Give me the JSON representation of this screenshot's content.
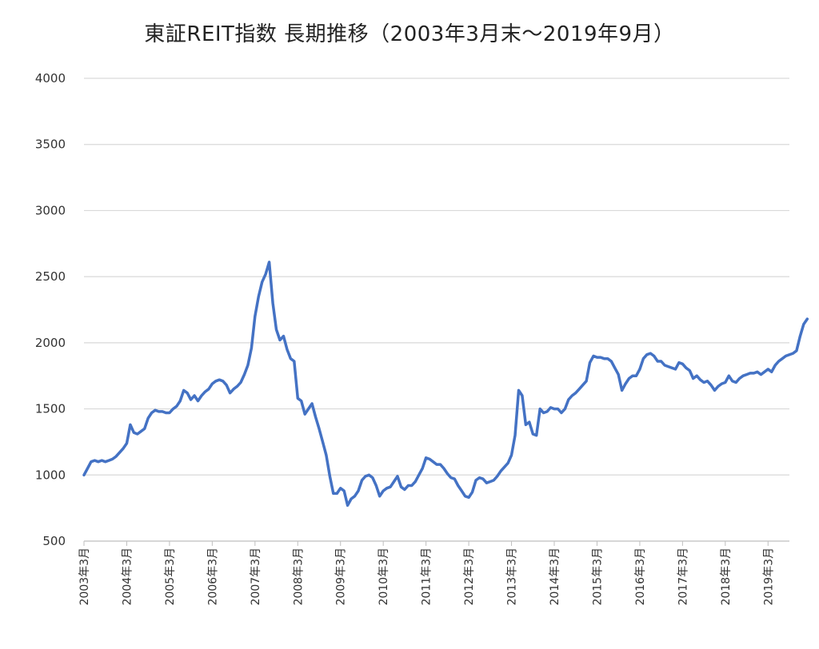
{
  "chart_data": {
    "type": "line",
    "title": "東証REIT指数 長期推移（2003年3月末～2019年9月）",
    "xlabel": "",
    "ylabel": "",
    "ylim": [
      500,
      4000
    ],
    "yticks": [
      "500",
      "1000",
      "1500",
      "2000",
      "2500",
      "3000",
      "3500",
      "4000"
    ],
    "xtick_labels": [
      "2003年3月",
      "2004年3月",
      "2005年3月",
      "2006年3月",
      "2007年3月",
      "2008年3月",
      "2009年3月",
      "2010年3月",
      "2011年3月",
      "2012年3月",
      "2013年3月",
      "2014年3月",
      "2015年3月",
      "2016年3月",
      "2017年3月",
      "2018年3月",
      "2019年3月"
    ],
    "x_start": "2003-03",
    "x_end": "2019-09",
    "grid": true,
    "line_color": "#4472C4",
    "grid_color": "#d9d9d9",
    "series": [
      {
        "values": [
          [
            0,
            1000
          ],
          [
            1,
            1050
          ],
          [
            2,
            1100
          ],
          [
            3,
            1110
          ],
          [
            4,
            1100
          ],
          [
            5,
            1110
          ],
          [
            6,
            1100
          ],
          [
            7,
            1110
          ],
          [
            8,
            1120
          ],
          [
            9,
            1140
          ],
          [
            10,
            1170
          ],
          [
            11,
            1200
          ],
          [
            12,
            1240
          ],
          [
            13,
            1380
          ],
          [
            14,
            1320
          ],
          [
            15,
            1310
          ],
          [
            16,
            1330
          ],
          [
            17,
            1350
          ],
          [
            18,
            1430
          ],
          [
            19,
            1470
          ],
          [
            20,
            1490
          ],
          [
            21,
            1480
          ],
          [
            22,
            1480
          ],
          [
            23,
            1470
          ],
          [
            24,
            1470
          ],
          [
            25,
            1500
          ],
          [
            26,
            1520
          ],
          [
            27,
            1560
          ],
          [
            28,
            1640
          ],
          [
            29,
            1620
          ],
          [
            30,
            1570
          ],
          [
            31,
            1600
          ],
          [
            32,
            1560
          ],
          [
            33,
            1600
          ],
          [
            34,
            1630
          ],
          [
            35,
            1650
          ],
          [
            36,
            1690
          ],
          [
            37,
            1710
          ],
          [
            38,
            1720
          ],
          [
            39,
            1710
          ],
          [
            40,
            1680
          ],
          [
            41,
            1620
          ],
          [
            42,
            1650
          ],
          [
            43,
            1670
          ],
          [
            44,
            1700
          ],
          [
            45,
            1760
          ],
          [
            46,
            1830
          ],
          [
            47,
            1960
          ],
          [
            48,
            2200
          ],
          [
            49,
            2350
          ],
          [
            50,
            2460
          ],
          [
            51,
            2520
          ],
          [
            52,
            2610
          ],
          [
            53,
            2300
          ],
          [
            54,
            2100
          ],
          [
            55,
            2020
          ],
          [
            56,
            2050
          ],
          [
            57,
            1950
          ],
          [
            58,
            1880
          ],
          [
            59,
            1860
          ],
          [
            60,
            1580
          ],
          [
            61,
            1560
          ],
          [
            62,
            1460
          ],
          [
            63,
            1500
          ],
          [
            64,
            1540
          ],
          [
            65,
            1440
          ],
          [
            66,
            1350
          ],
          [
            67,
            1250
          ],
          [
            68,
            1150
          ],
          [
            69,
            990
          ],
          [
            70,
            860
          ],
          [
            71,
            860
          ],
          [
            72,
            900
          ],
          [
            73,
            880
          ],
          [
            74,
            770
          ],
          [
            75,
            820
          ],
          [
            76,
            840
          ],
          [
            77,
            880
          ],
          [
            78,
            960
          ],
          [
            79,
            990
          ],
          [
            80,
            1000
          ],
          [
            81,
            980
          ],
          [
            82,
            920
          ],
          [
            83,
            840
          ],
          [
            84,
            880
          ],
          [
            85,
            900
          ],
          [
            86,
            910
          ],
          [
            87,
            950
          ],
          [
            88,
            990
          ],
          [
            89,
            910
          ],
          [
            90,
            890
          ],
          [
            91,
            920
          ],
          [
            92,
            920
          ],
          [
            93,
            950
          ],
          [
            94,
            1000
          ],
          [
            95,
            1050
          ],
          [
            96,
            1130
          ],
          [
            97,
            1120
          ],
          [
            98,
            1100
          ],
          [
            99,
            1080
          ],
          [
            100,
            1080
          ],
          [
            101,
            1050
          ],
          [
            102,
            1010
          ],
          [
            103,
            980
          ],
          [
            104,
            970
          ],
          [
            105,
            920
          ],
          [
            106,
            880
          ],
          [
            107,
            840
          ],
          [
            108,
            830
          ],
          [
            109,
            870
          ],
          [
            110,
            960
          ],
          [
            111,
            980
          ],
          [
            112,
            970
          ],
          [
            113,
            940
          ],
          [
            114,
            950
          ],
          [
            115,
            960
          ],
          [
            116,
            990
          ],
          [
            117,
            1030
          ],
          [
            118,
            1060
          ],
          [
            119,
            1090
          ],
          [
            120,
            1150
          ],
          [
            121,
            1300
          ],
          [
            122,
            1640
          ],
          [
            123,
            1600
          ],
          [
            124,
            1380
          ],
          [
            125,
            1400
          ],
          [
            126,
            1310
          ],
          [
            127,
            1300
          ],
          [
            128,
            1500
          ],
          [
            129,
            1470
          ],
          [
            130,
            1480
          ],
          [
            131,
            1510
          ],
          [
            132,
            1500
          ],
          [
            133,
            1500
          ],
          [
            134,
            1470
          ],
          [
            135,
            1500
          ],
          [
            136,
            1570
          ],
          [
            137,
            1600
          ],
          [
            138,
            1620
          ],
          [
            139,
            1650
          ],
          [
            140,
            1680
          ],
          [
            141,
            1710
          ],
          [
            142,
            1850
          ],
          [
            143,
            1900
          ],
          [
            144,
            1890
          ],
          [
            145,
            1890
          ],
          [
            146,
            1880
          ],
          [
            147,
            1880
          ],
          [
            148,
            1860
          ],
          [
            149,
            1810
          ],
          [
            150,
            1760
          ],
          [
            151,
            1640
          ],
          [
            152,
            1690
          ],
          [
            153,
            1730
          ],
          [
            154,
            1750
          ],
          [
            155,
            1750
          ],
          [
            156,
            1800
          ],
          [
            157,
            1880
          ],
          [
            158,
            1910
          ],
          [
            159,
            1920
          ],
          [
            160,
            1900
          ],
          [
            161,
            1860
          ],
          [
            162,
            1860
          ],
          [
            163,
            1830
          ],
          [
            164,
            1820
          ],
          [
            165,
            1810
          ],
          [
            166,
            1800
          ],
          [
            167,
            1850
          ],
          [
            168,
            1840
          ],
          [
            169,
            1810
          ],
          [
            170,
            1790
          ],
          [
            171,
            1730
          ],
          [
            172,
            1750
          ],
          [
            173,
            1720
          ],
          [
            174,
            1700
          ],
          [
            175,
            1710
          ],
          [
            176,
            1680
          ],
          [
            177,
            1640
          ],
          [
            178,
            1670
          ],
          [
            179,
            1690
          ],
          [
            180,
            1700
          ],
          [
            181,
            1750
          ],
          [
            182,
            1710
          ],
          [
            183,
            1700
          ],
          [
            184,
            1730
          ],
          [
            185,
            1750
          ],
          [
            186,
            1760
          ],
          [
            187,
            1770
          ],
          [
            188,
            1770
          ],
          [
            189,
            1780
          ],
          [
            190,
            1760
          ],
          [
            191,
            1780
          ],
          [
            192,
            1800
          ],
          [
            193,
            1780
          ],
          [
            194,
            1830
          ],
          [
            195,
            1860
          ],
          [
            196,
            1880
          ],
          [
            197,
            1900
          ],
          [
            198,
            1910
          ],
          [
            199,
            1920
          ],
          [
            200,
            1940
          ],
          [
            201,
            2050
          ],
          [
            202,
            2140
          ],
          [
            203,
            2180
          ]
        ]
      }
    ]
  }
}
